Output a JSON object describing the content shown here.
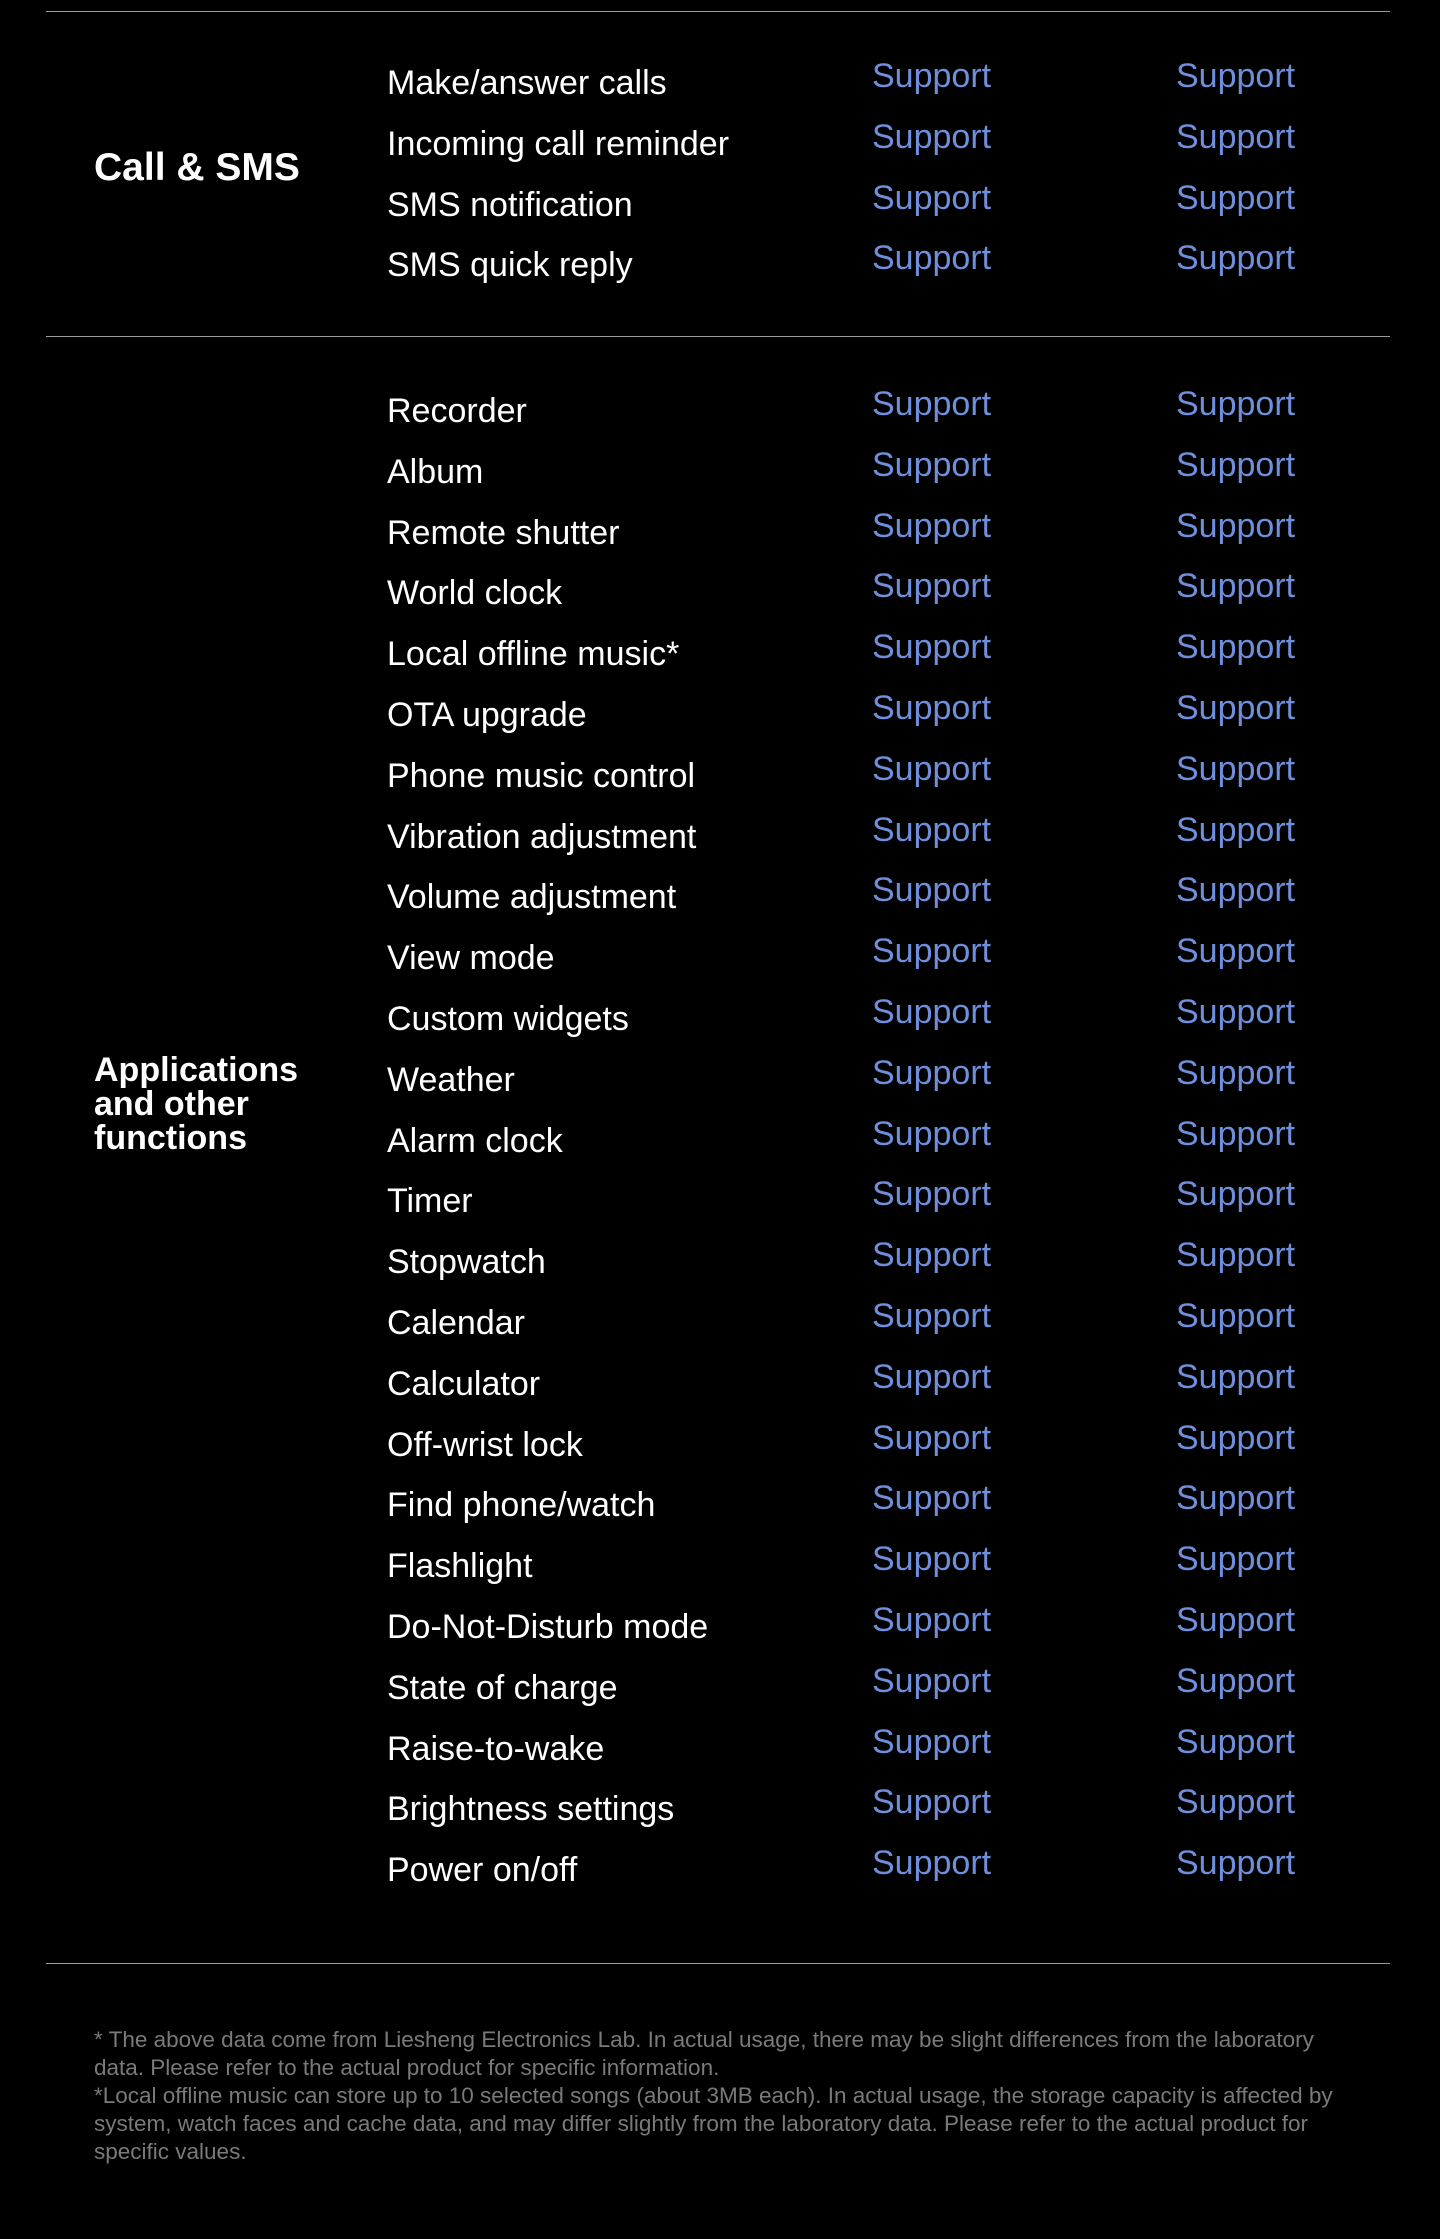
{
  "colors": {
    "background": "#000000",
    "support": "#6f8fdc",
    "divider": "#9a9a9a",
    "footnote": "#7a7a7a"
  },
  "sections": [
    {
      "category": "Call & SMS",
      "rows": [
        {
          "feature": "Make/answer calls",
          "col1": "Support",
          "col2": "Support"
        },
        {
          "feature": "Incoming call reminder",
          "col1": "Support",
          "col2": "Support"
        },
        {
          "feature": "SMS notification",
          "col1": "Support",
          "col2": "Support"
        },
        {
          "feature": "SMS quick reply",
          "col1": "Support",
          "col2": "Support"
        }
      ]
    },
    {
      "category": "Applications and other functions",
      "rows": [
        {
          "feature": "Recorder",
          "col1": "Support",
          "col2": "Support"
        },
        {
          "feature": "Album",
          "col1": "Support",
          "col2": "Support"
        },
        {
          "feature": "Remote shutter",
          "col1": "Support",
          "col2": "Support"
        },
        {
          "feature": "World clock",
          "col1": "Support",
          "col2": "Support"
        },
        {
          "feature": "Local offline music*",
          "col1": "Support",
          "col2": "Support"
        },
        {
          "feature": "OTA upgrade",
          "col1": "Support",
          "col2": "Support"
        },
        {
          "feature": "Phone music control",
          "col1": "Support",
          "col2": "Support"
        },
        {
          "feature": "Vibration adjustment",
          "col1": "Support",
          "col2": "Support"
        },
        {
          "feature": "Volume adjustment",
          "col1": "Support",
          "col2": "Support"
        },
        {
          "feature": "View mode",
          "col1": "Support",
          "col2": "Support"
        },
        {
          "feature": "Custom widgets",
          "col1": "Support",
          "col2": "Support"
        },
        {
          "feature": "Weather",
          "col1": "Support",
          "col2": "Support"
        },
        {
          "feature": "Alarm clock",
          "col1": "Support",
          "col2": "Support"
        },
        {
          "feature": "Timer",
          "col1": "Support",
          "col2": "Support"
        },
        {
          "feature": "Stopwatch",
          "col1": "Support",
          "col2": "Support"
        },
        {
          "feature": "Calendar",
          "col1": "Support",
          "col2": "Support"
        },
        {
          "feature": "Calculator",
          "col1": "Support",
          "col2": "Support"
        },
        {
          "feature": "Off-wrist lock",
          "col1": "Support",
          "col2": "Support"
        },
        {
          "feature": "Find phone/watch",
          "col1": "Support",
          "col2": "Support"
        },
        {
          "feature": "Flashlight",
          "col1": "Support",
          "col2": "Support"
        },
        {
          "feature": "Do-Not-Disturb mode",
          "col1": "Support",
          "col2": "Support"
        },
        {
          "feature": "State of charge",
          "col1": "Support",
          "col2": "Support"
        },
        {
          "feature": "Raise-to-wake",
          "col1": "Support",
          "col2": "Support"
        },
        {
          "feature": "Brightness settings",
          "col1": "Support",
          "col2": "Support"
        },
        {
          "feature": "Power on/off",
          "col1": "Support",
          "col2": "Support"
        }
      ]
    }
  ],
  "footnotes": [
    "* The above data come from Liesheng Electronics Lab. In actual usage, there may be slight differences from the laboratory data. Please refer to the actual product for specific information.",
    "*Local offline music can store up to 10 selected songs (about 3MB each). In actual usage, the storage capacity is affected by system, watch faces and cache data, and may differ slightly from the laboratory data. Please refer to the actual product for specific values."
  ]
}
